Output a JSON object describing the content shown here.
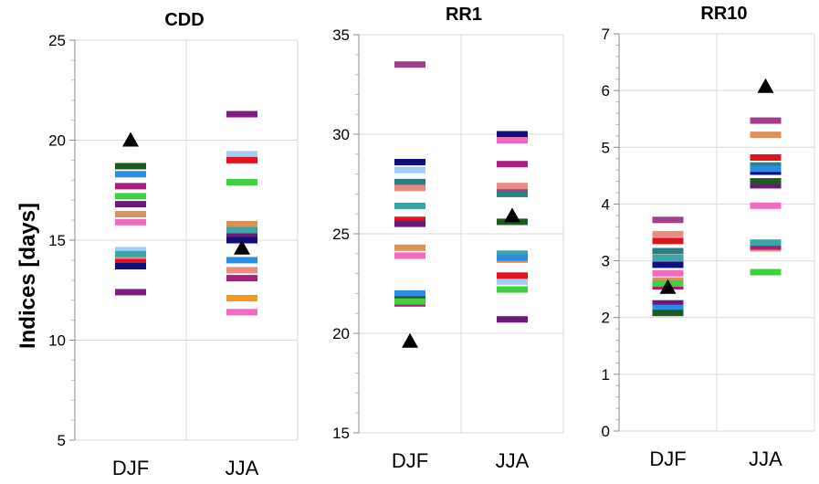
{
  "figure": {
    "ylabel": "Indices [days]"
  },
  "chart_data": [
    {
      "type": "scatter",
      "title": "CDD",
      "categories": [
        "DJF",
        "JJA"
      ],
      "ylim": [
        5,
        25
      ],
      "yticks": [
        5,
        10,
        15,
        20,
        25
      ],
      "grid": true,
      "members": [
        {
          "color": "#7E1E80",
          "values": [
            12.4,
            21.3
          ]
        },
        {
          "color": "#1E5A1E",
          "values": [
            18.7,
            15.6
          ]
        },
        {
          "color": "#2B8BE6",
          "values": [
            18.3,
            14.0
          ]
        },
        {
          "color": "#A6207C",
          "values": [
            17.7,
            13.1
          ]
        },
        {
          "color": "#3FD13F",
          "values": [
            17.2,
            17.9
          ]
        },
        {
          "color": "#6B1A78",
          "values": [
            16.8,
            15.2
          ]
        },
        {
          "color": "#D9925A",
          "values": [
            16.3,
            15.8
          ]
        },
        {
          "color": "#F06BC0",
          "values": [
            15.9,
            11.4
          ]
        },
        {
          "color": "#9ED0F5",
          "values": [
            14.5,
            19.3
          ]
        },
        {
          "color": "#3AA6A6",
          "values": [
            14.3,
            15.5
          ]
        },
        {
          "color": "#E98C84",
          "values": [
            14.0,
            13.5
          ]
        },
        {
          "color": "#F39A1E",
          "values": [
            13.8,
            12.1
          ]
        },
        {
          "color": "#E0141E",
          "values": [
            13.9,
            19.0
          ]
        },
        {
          "color": "#10107A",
          "values": [
            13.7,
            15.0
          ]
        }
      ],
      "observations": {
        "marker": "triangle",
        "values": [
          20.0,
          14.6
        ]
      }
    },
    {
      "type": "scatter",
      "title": "RR1",
      "categories": [
        "DJF",
        "JJA"
      ],
      "ylim": [
        15,
        35
      ],
      "yticks": [
        15,
        20,
        25,
        30,
        35
      ],
      "grid": true,
      "members": [
        {
          "color": "#A33E8C",
          "values": [
            33.5,
            27.2
          ]
        },
        {
          "color": "#10107A",
          "values": [
            28.6,
            30.0
          ]
        },
        {
          "color": "#9ED0F5",
          "values": [
            28.2,
            22.6
          ]
        },
        {
          "color": "#2E7D80",
          "values": [
            27.6,
            27.0
          ]
        },
        {
          "color": "#E98C84",
          "values": [
            27.3,
            27.4
          ]
        },
        {
          "color": "#3AA6A6",
          "values": [
            26.4,
            24.0
          ]
        },
        {
          "color": "#E0141E",
          "values": [
            25.7,
            22.9
          ]
        },
        {
          "color": "#6B1A78",
          "values": [
            25.5,
            20.7
          ]
        },
        {
          "color": "#D9925A",
          "values": [
            24.3,
            23.7
          ]
        },
        {
          "color": "#F06BC0",
          "values": [
            23.9,
            29.7
          ]
        },
        {
          "color": "#2B8BE6",
          "values": [
            22.0,
            23.8
          ]
        },
        {
          "color": "#A6207C",
          "values": [
            21.5,
            28.5
          ]
        },
        {
          "color": "#1E5A1E",
          "values": [
            21.7,
            25.6
          ]
        },
        {
          "color": "#3FD13F",
          "values": [
            21.6,
            22.2
          ]
        }
      ],
      "observations": {
        "marker": "triangle",
        "values": [
          19.6,
          25.9
        ]
      }
    },
    {
      "type": "scatter",
      "title": "RR10",
      "categories": [
        "DJF",
        "JJA"
      ],
      "ylim": [
        0,
        7
      ],
      "yticks": [
        0,
        1,
        2,
        3,
        4,
        5,
        6,
        7
      ],
      "grid": true,
      "members": [
        {
          "color": "#A33E8C",
          "values": [
            3.72,
            5.47
          ]
        },
        {
          "color": "#E98C84",
          "values": [
            3.47,
            3.22
          ]
        },
        {
          "color": "#E0141E",
          "values": [
            3.35,
            4.82
          ]
        },
        {
          "color": "#2E7D80",
          "values": [
            3.17,
            4.68
          ]
        },
        {
          "color": "#9ED0F5",
          "values": [
            2.98,
            3.28
          ]
        },
        {
          "color": "#10107A",
          "values": [
            2.93,
            4.57
          ]
        },
        {
          "color": "#D9925A",
          "values": [
            2.65,
            5.22
          ]
        },
        {
          "color": "#A6207C",
          "values": [
            2.55,
            3.25
          ]
        },
        {
          "color": "#6B1A78",
          "values": [
            2.25,
            4.33
          ]
        },
        {
          "color": "#2B8BE6",
          "values": [
            2.17,
            4.62
          ]
        },
        {
          "color": "#1E5A1E",
          "values": [
            2.08,
            4.4
          ]
        },
        {
          "color": "#3AA6A6",
          "values": [
            3.05,
            3.32
          ]
        },
        {
          "color": "#F06BC0",
          "values": [
            2.78,
            3.97
          ]
        },
        {
          "color": "#3FD13F",
          "values": [
            2.6,
            2.8
          ]
        }
      ],
      "observations": {
        "marker": "triangle",
        "values": [
          2.53,
          6.07
        ]
      }
    }
  ]
}
